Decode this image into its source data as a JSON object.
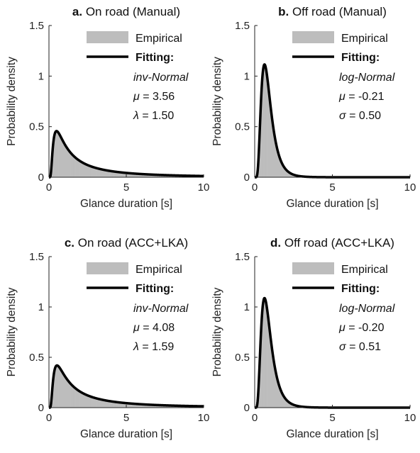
{
  "chart_data": [
    {
      "type": "area",
      "panel_label": "a.",
      "title": "On road (Manual)",
      "xlabel": "Glance duration [s]",
      "ylabel": "Probability density",
      "xlim": [
        0,
        10
      ],
      "ylim": [
        0,
        1.5
      ],
      "xticks": [
        "0",
        "5",
        "10"
      ],
      "yticks": [
        "0",
        "0.5",
        "1",
        "1.5"
      ],
      "legend": {
        "empirical_label": "Empirical",
        "fitting_label": "Fitting:",
        "model": "inv-Normal",
        "param1_symbol": "μ",
        "param1_value": " = 3.56",
        "param2_symbol": "λ",
        "param2_value": " = 1.50"
      },
      "distribution": {
        "family": "inverse-gaussian",
        "mu": 3.56,
        "lambda": 1.5
      },
      "series": [
        {
          "name": "Empirical",
          "kind": "histogram",
          "color": "#bdbdbd"
        },
        {
          "name": "Fitting",
          "kind": "line",
          "color": "#000000"
        }
      ]
    },
    {
      "type": "area",
      "panel_label": "b.",
      "title": "Off road (Manual)",
      "xlabel": "Glance duration [s]",
      "ylabel": "Probability density",
      "xlim": [
        0,
        10
      ],
      "ylim": [
        0,
        1.5
      ],
      "xticks": [
        "0",
        "5",
        "10"
      ],
      "yticks": [
        "0",
        "0.5",
        "1",
        "1.5"
      ],
      "legend": {
        "empirical_label": "Empirical",
        "fitting_label": "Fitting:",
        "model": "log-Normal",
        "param1_symbol": "μ",
        "param1_value": " = -0.21",
        "param2_symbol": "σ",
        "param2_value": " = 0.50"
      },
      "distribution": {
        "family": "log-normal",
        "mu": -0.21,
        "sigma": 0.5
      },
      "series": [
        {
          "name": "Empirical",
          "kind": "histogram",
          "color": "#bdbdbd"
        },
        {
          "name": "Fitting",
          "kind": "line",
          "color": "#000000"
        }
      ]
    },
    {
      "type": "area",
      "panel_label": "c.",
      "title": "On road (ACC+LKA)",
      "xlabel": "Glance duration [s]",
      "ylabel": "Probability density",
      "xlim": [
        0,
        10
      ],
      "ylim": [
        0,
        1.5
      ],
      "xticks": [
        "0",
        "5",
        "10"
      ],
      "yticks": [
        "0",
        "0.5",
        "1",
        "1.5"
      ],
      "legend": {
        "empirical_label": "Empirical",
        "fitting_label": "Fitting:",
        "model": "inv-Normal",
        "param1_symbol": "μ",
        "param1_value": " = 4.08",
        "param2_symbol": "λ",
        "param2_value": " = 1.59"
      },
      "distribution": {
        "family": "inverse-gaussian",
        "mu": 4.08,
        "lambda": 1.59
      },
      "series": [
        {
          "name": "Empirical",
          "kind": "histogram",
          "color": "#bdbdbd"
        },
        {
          "name": "Fitting",
          "kind": "line",
          "color": "#000000"
        }
      ]
    },
    {
      "type": "area",
      "panel_label": "d.",
      "title": "Off road (ACC+LKA)",
      "xlabel": "Glance duration [s]",
      "ylabel": "Probability density",
      "xlim": [
        0,
        10
      ],
      "ylim": [
        0,
        1.5
      ],
      "xticks": [
        "0",
        "5",
        "10"
      ],
      "yticks": [
        "0",
        "0.5",
        "1",
        "1.5"
      ],
      "legend": {
        "empirical_label": "Empirical",
        "fitting_label": "Fitting:",
        "model": "log-Normal",
        "param1_symbol": "μ",
        "param1_value": " = -0.20",
        "param2_symbol": "σ",
        "param2_value": " = 0.51"
      },
      "distribution": {
        "family": "log-normal",
        "mu": -0.2,
        "sigma": 0.51
      },
      "series": [
        {
          "name": "Empirical",
          "kind": "histogram",
          "color": "#bdbdbd"
        },
        {
          "name": "Fitting",
          "kind": "line",
          "color": "#000000"
        }
      ]
    }
  ]
}
